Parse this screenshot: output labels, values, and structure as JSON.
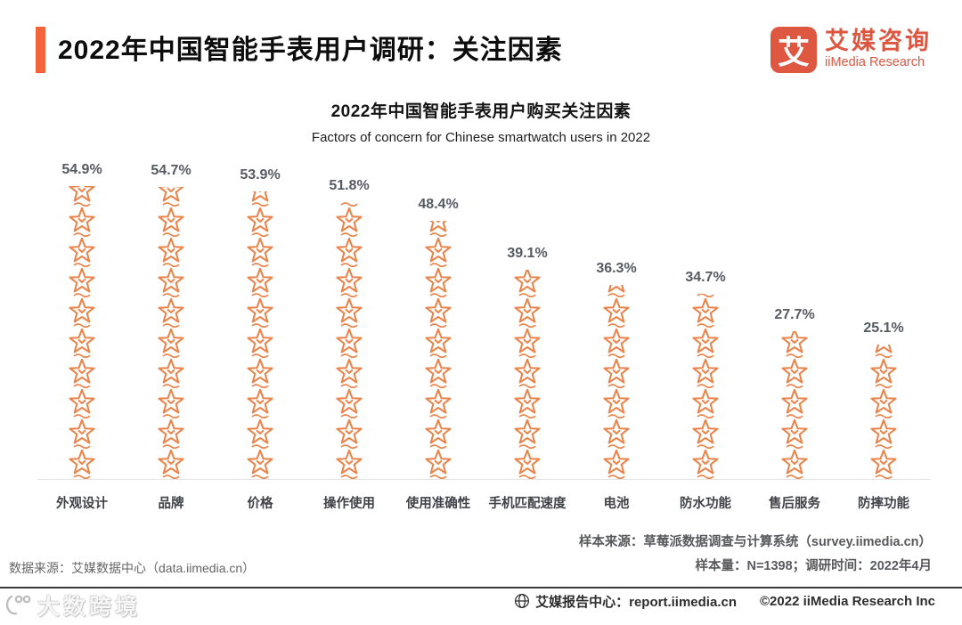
{
  "header": {
    "title": "2022年中国智能手表用户调研：关注因素",
    "logo": {
      "glyph": "艾",
      "name_cn": "艾媒咨询",
      "name_en": "iiMedia Research"
    }
  },
  "chart_data": {
    "type": "bar",
    "title": "2022年中国智能手表用户购买关注因素",
    "subtitle": "Factors of concern for Chinese smartwatch users in 2022",
    "categories": [
      "外观设计",
      "品牌",
      "价格",
      "操作使用",
      "使用准确性",
      "手机匹配速度",
      "电池",
      "防水功能",
      "售后服务",
      "防摔功能"
    ],
    "values": [
      54.9,
      54.7,
      53.9,
      51.8,
      48.4,
      39.1,
      36.3,
      34.7,
      27.7,
      25.1
    ],
    "value_suffix": "%",
    "xlabel": "",
    "ylabel": "",
    "ylim": [
      0,
      60
    ],
    "grid": false,
    "legend": "none",
    "bar_style": "stacked-star-pictogram"
  },
  "footer": {
    "data_source": "数据来源：艾媒数据中心（data.iimedia.cn）",
    "sample_source": "样本来源：草莓派数据调查与计算系统（survey.iimedia.cn）",
    "sample_info": "样本量：N=1398；调研时间：2022年4月",
    "report_center": "艾媒报告中心：report.iimedia.cn",
    "copyright": "©2022 iiMedia Research Inc"
  },
  "watermark": "大数跨境",
  "colors": {
    "accent": "#F2653C",
    "logo": "#DE5740",
    "star": "#E9854C",
    "value_label": "#565B63",
    "category_label": "#3F4347"
  }
}
